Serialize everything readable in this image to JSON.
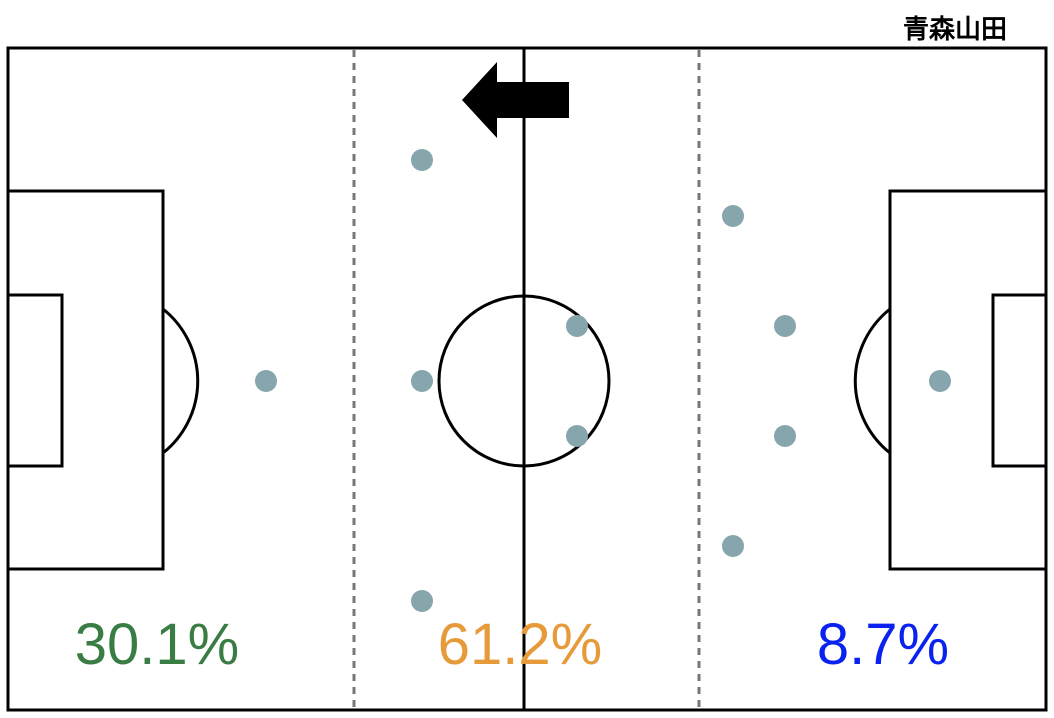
{
  "header": {
    "team": "青森山田"
  },
  "zones": [
    {
      "label": "30.1%"
    },
    {
      "label": "61.2%"
    },
    {
      "label": "8.7%"
    }
  ]
}
